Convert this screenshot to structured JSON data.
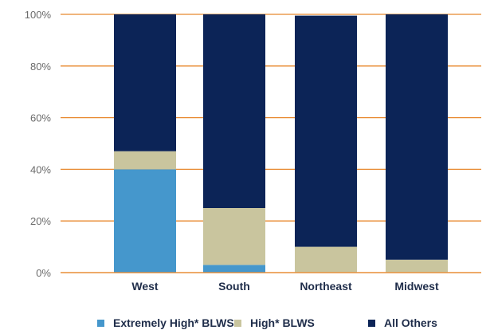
{
  "chart_data": {
    "type": "bar",
    "stacked": true,
    "percent": true,
    "categories": [
      "West",
      "South",
      "Northeast",
      "Midwest"
    ],
    "series": [
      {
        "name": "Extremely High* BLWS",
        "color": "#4597cc",
        "values": [
          40,
          3,
          0,
          0
        ]
      },
      {
        "name": "High* BLWS",
        "color": "#c9c59e",
        "values": [
          7,
          22,
          10,
          5
        ]
      },
      {
        "name": "All Others",
        "color": "#0c2457",
        "values": [
          53,
          75,
          89.5,
          95
        ]
      }
    ],
    "yticks": [
      "0%",
      "20%",
      "40%",
      "60%",
      "80%",
      "100%"
    ],
    "ylim": [
      0,
      100
    ],
    "grid": true,
    "grid_color": "#e8892f",
    "legend_position": "bottom"
  }
}
